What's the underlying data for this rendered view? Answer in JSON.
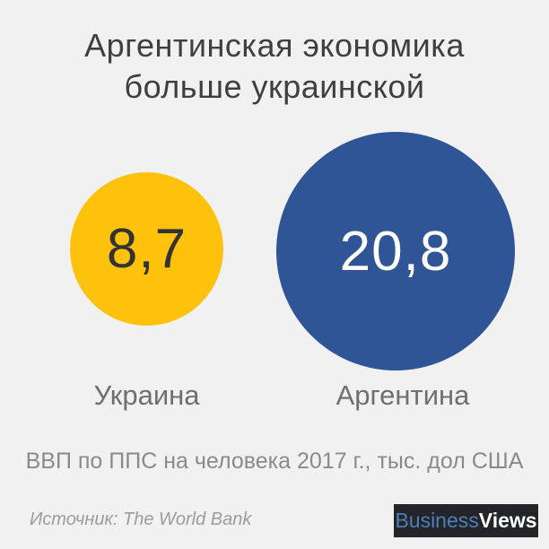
{
  "background_color": "#f1f1f1",
  "title": {
    "line1": "Аргентинская экономика",
    "line2": "больше украинской"
  },
  "chart_data": {
    "type": "bubble",
    "title": "Аргентинская экономика больше украинской",
    "categories": [
      "Украина",
      "Аргентина"
    ],
    "values": [
      8.7,
      20.8
    ],
    "value_labels": [
      "8,7",
      "20,8"
    ],
    "metric": "ВВП по ППС на человека, 2017 г.",
    "unit": "тыс. дол США",
    "caption": "ВВП по ППС на человека 2017 г., тыс. дол США",
    "source": "Источник: The World Bank",
    "colors": [
      "#fec20d",
      "#2f5596"
    ],
    "value_text_colors": [
      "#333333",
      "#ffffff"
    ],
    "area_proportional": true,
    "legend_position": "none"
  },
  "bubbles": [
    {
      "label": "Украина",
      "value_label": "8,7",
      "color": "#fec20d",
      "text_color": "#333333"
    },
    {
      "label": "Аргентина",
      "value_label": "20,8",
      "color": "#2f5596",
      "text_color": "#ffffff"
    }
  ],
  "caption": "ВВП по ППС на человека 2017 г., тыс. дол США",
  "source": "Источник: The World Bank",
  "logo": {
    "part1": "Business",
    "part2": "Views",
    "background": "#232528",
    "part1_color": "#4d80b8",
    "part2_color": "#ffffff"
  }
}
